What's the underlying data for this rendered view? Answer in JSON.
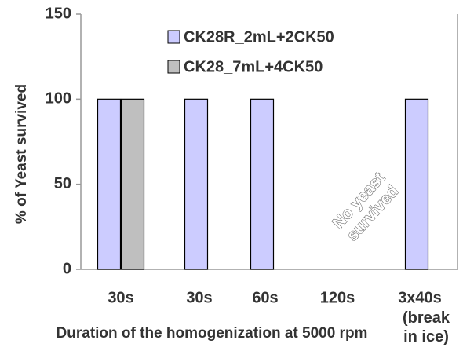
{
  "chart_data": {
    "type": "bar",
    "title": "",
    "xlabel": "Duration of the homogenization at 5000 rpm",
    "ylabel": "% of Yeast survived",
    "ylim": [
      0,
      150
    ],
    "yticks": [
      "0",
      "50",
      "100",
      "150"
    ],
    "categories": [
      "30s",
      "30s",
      "60s",
      "120s",
      "3x40s"
    ],
    "category_sublabels": [
      "",
      "",
      "",
      "",
      "(break in ice)"
    ],
    "category_sublabel_lines": [
      "(break",
      "in ice)"
    ],
    "series": [
      {
        "name": "CK28R_2mL+2CK50",
        "color": "#ccccff",
        "values": [
          100,
          100,
          100,
          0,
          100
        ]
      },
      {
        "name": "CK28_7mL+4CK50",
        "color": "#bfbfbf",
        "values": [
          100,
          null,
          null,
          null,
          null
        ]
      }
    ],
    "annotation": {
      "lines": [
        "No yeast",
        "survived"
      ],
      "category_index": 3
    },
    "grid": false,
    "legend_position": "top-center"
  }
}
